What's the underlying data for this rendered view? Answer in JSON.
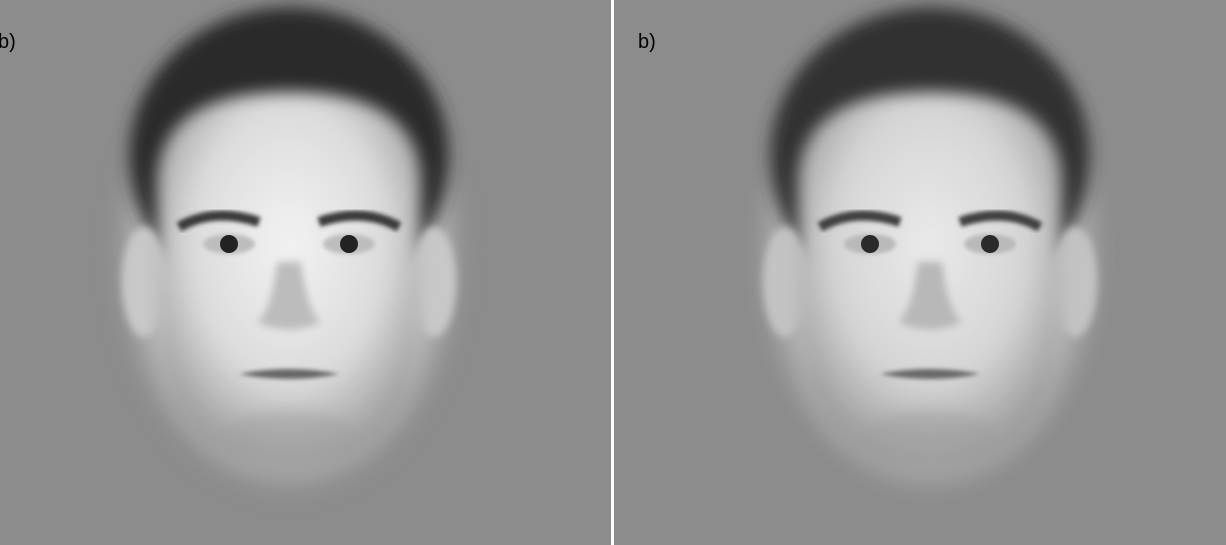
{
  "panels": [
    {
      "label": "b)"
    },
    {
      "label": "b)"
    }
  ]
}
